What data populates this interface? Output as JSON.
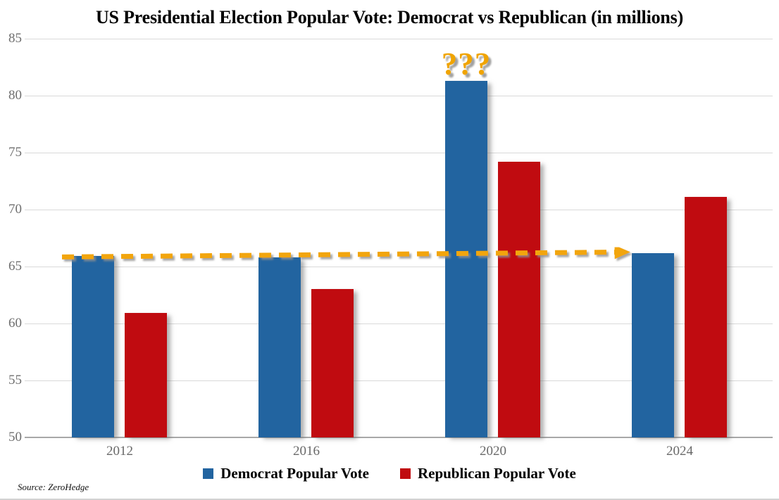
{
  "title": "US Presidential Election Popular Vote: Democrat vs Republican (in millions)",
  "source_note": "Source: ZeroHedge",
  "annotation": {
    "text": "???",
    "color": "#F0A402",
    "target": "2020 Democrat bar"
  },
  "colors": {
    "democrat": "#2264A0",
    "republican": "#C00B10",
    "arrow": "#F2A50C",
    "gridline": "#D9D9D9",
    "axis_text": "#6F6F6F",
    "title_text": "#000000"
  },
  "chart_data": {
    "type": "bar",
    "title": "US Presidential Election Popular Vote: Democrat vs Republican (in millions)",
    "categories": [
      "2012",
      "2016",
      "2020",
      "2024"
    ],
    "series": [
      {
        "name": "Democrat Popular Vote",
        "key": "democrat",
        "color": "#2264A0",
        "values": [
          65.9,
          65.8,
          81.3,
          66.2
        ]
      },
      {
        "name": "Republican Popular Vote",
        "key": "republican",
        "color": "#C00B10",
        "values": [
          60.9,
          63.0,
          74.2,
          71.1
        ]
      }
    ],
    "xlabel": "",
    "ylabel": "",
    "ylim": [
      50,
      85
    ],
    "yticks": [
      50,
      55,
      60,
      65,
      70,
      75,
      80,
      85
    ],
    "grid": true,
    "legend_position": "bottom",
    "annotations": [
      {
        "text": "???",
        "x": "2020",
        "series": "Democrat Popular Vote",
        "position": "above-bar",
        "color": "#F0A402"
      }
    ],
    "trend_arrow": {
      "style": "dashed",
      "color": "#F2A50C",
      "from_category": "2012",
      "from_value": 65.9,
      "to_category": "2024",
      "to_value": 66.2,
      "note": "near-horizontal dashed arrow showing Democrat vote flat except 2020 spike"
    }
  }
}
